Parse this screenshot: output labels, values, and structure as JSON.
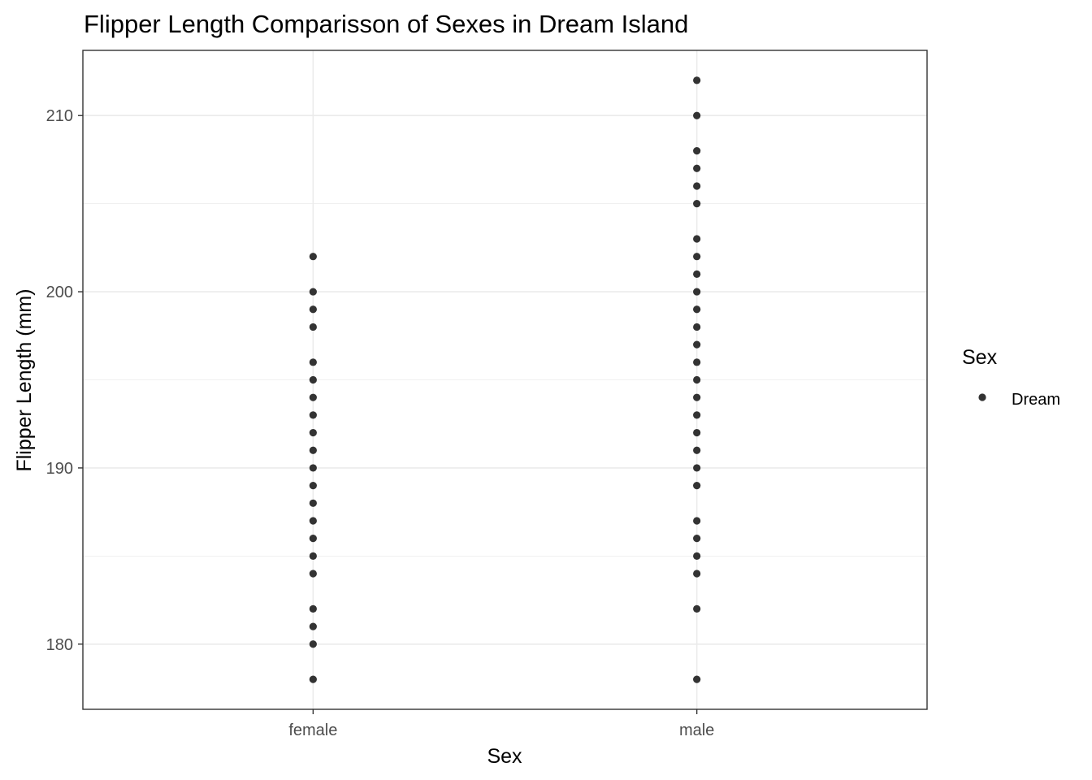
{
  "chart_data": {
    "type": "scatter",
    "title": "Flipper Length Comparisson of Sexes in Dream Island",
    "xlabel": "Sex",
    "ylabel": "Flipper Length (mm)",
    "categories": [
      "female",
      "male"
    ],
    "ylim": [
      176.3,
      213.7
    ],
    "y_major_ticks": [
      180,
      190,
      200,
      210
    ],
    "y_minor_ticks": [
      185,
      195,
      205
    ],
    "grid": true,
    "legend": {
      "title": "Sex",
      "entries": [
        {
          "label": "Dream",
          "color": "#333333"
        }
      ],
      "position": "right"
    },
    "point_color": "#333333",
    "series": [
      {
        "category": "female",
        "values": [
          202,
          200,
          199,
          198,
          196,
          195,
          194,
          193,
          192,
          191,
          190,
          189,
          188,
          187,
          186,
          185,
          184,
          182,
          181,
          180,
          178
        ]
      },
      {
        "category": "male",
        "values": [
          212,
          210,
          208,
          207,
          206,
          205,
          203,
          202,
          201,
          200,
          199,
          198,
          197,
          196,
          195,
          194,
          193,
          192,
          191,
          190,
          189,
          187,
          186,
          185,
          184,
          182,
          178
        ]
      }
    ]
  }
}
